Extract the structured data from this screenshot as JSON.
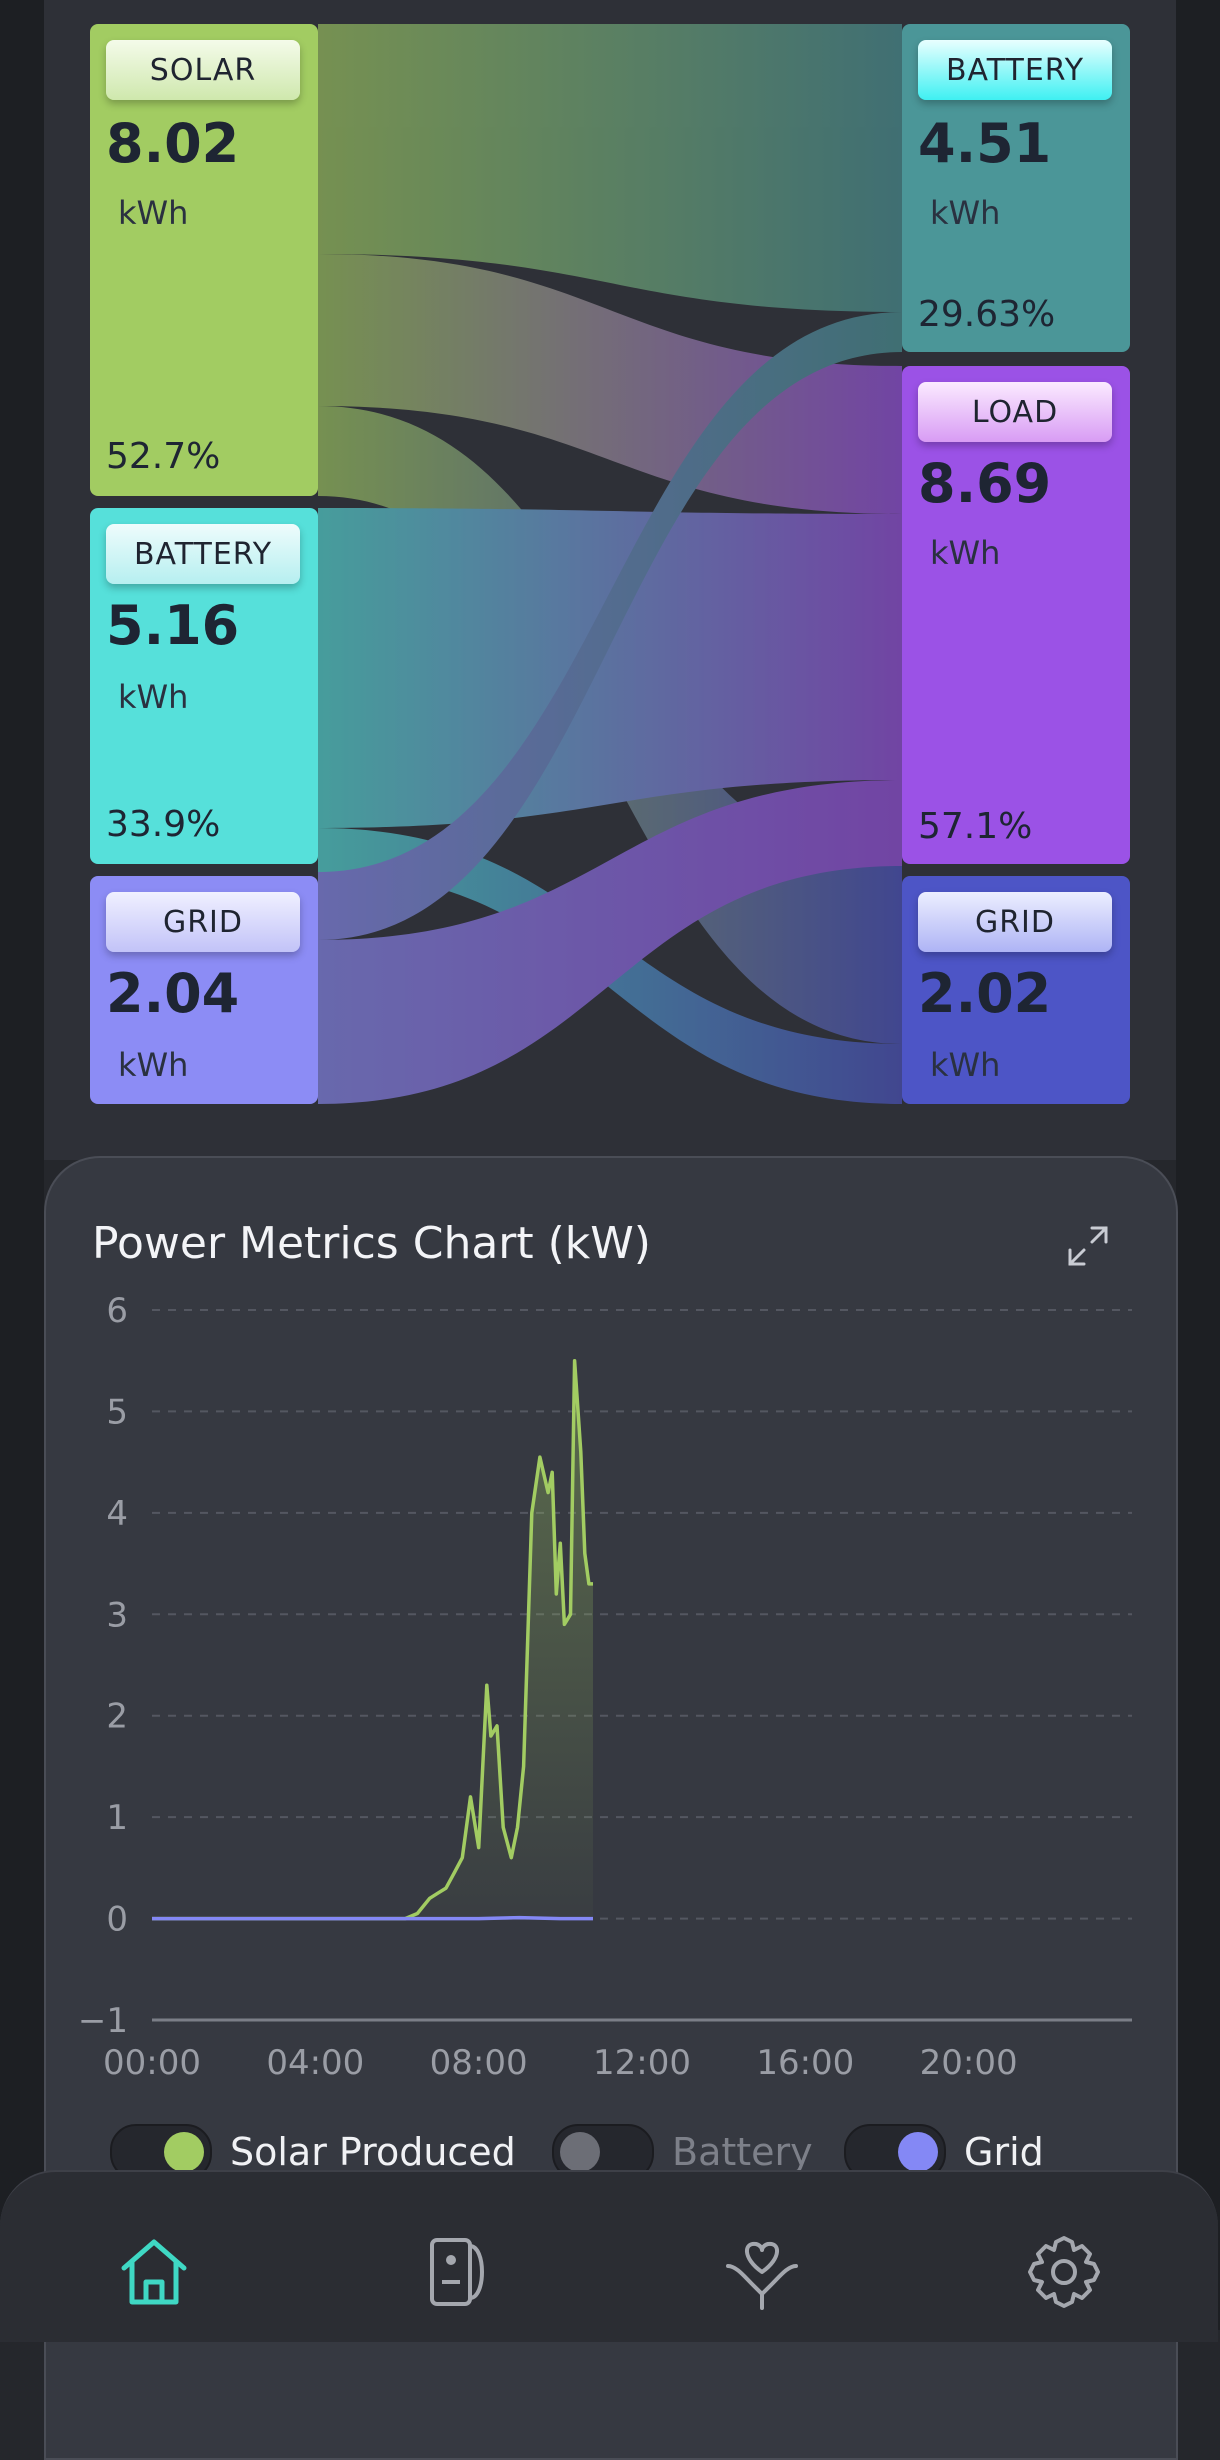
{
  "sankey": {
    "sources": [
      {
        "badge": "SOLAR",
        "value": "8.02",
        "unit": "kWh",
        "percent": "52.7%"
      },
      {
        "badge": "BATTERY",
        "value": "5.16",
        "unit": "kWh",
        "percent": "33.9%"
      },
      {
        "badge": "GRID",
        "value": "2.04",
        "unit": "kWh"
      }
    ],
    "targets": [
      {
        "badge": "BATTERY",
        "value": "4.51",
        "unit": "kWh",
        "percent": "29.63%"
      },
      {
        "badge": "LOAD",
        "value": "8.69",
        "unit": "kWh",
        "percent": "57.1%"
      },
      {
        "badge": "GRID",
        "value": "2.02",
        "unit": "kWh"
      }
    ],
    "colors": {
      "solar": "#a2cc62",
      "battery_source": "#56e0da",
      "grid_source": "#8c8cf5",
      "battery_target": "#4b9698",
      "load": "#9b52e6",
      "grid_target": "#4d55c6"
    }
  },
  "chart": {
    "title": "Power Metrics Chart (kW)",
    "expand_icon": "expand-icon"
  },
  "legend": [
    {
      "label": "Solar Produced",
      "color": "#a2cc62",
      "enabled": true
    },
    {
      "label": "Battery",
      "color": "#6c6e76",
      "enabled": false
    },
    {
      "label": "Grid",
      "color": "#8488f5",
      "enabled": true
    }
  ],
  "nav": {
    "items": [
      {
        "icon": "home-icon",
        "active": true
      },
      {
        "icon": "inverter-icon",
        "active": false
      },
      {
        "icon": "heart-hand-icon",
        "active": false
      },
      {
        "icon": "gear-icon",
        "active": false
      }
    ],
    "active_color": "#3fd8c4"
  },
  "chart_data": {
    "type": "line",
    "title": "Power Metrics Chart (kW)",
    "xlabel": "",
    "ylabel": "",
    "x_ticks": [
      "00:00",
      "04:00",
      "08:00",
      "12:00",
      "16:00",
      "20:00"
    ],
    "y_ticks": [
      6,
      5,
      4,
      3,
      2,
      1,
      0,
      -1
    ],
    "ylim": [
      -1,
      6
    ],
    "xlim_hours": [
      0,
      24
    ],
    "grid": true,
    "legend_position": "bottom",
    "series": [
      {
        "name": "Solar Produced",
        "color": "#a2cc62",
        "x": [
          0,
          6.2,
          6.5,
          6.8,
          7.0,
          7.2,
          7.4,
          7.6,
          7.8,
          8.0,
          8.2,
          8.3,
          8.45,
          8.6,
          8.8,
          8.95,
          9.1,
          9.3,
          9.5,
          9.7,
          9.8,
          9.9,
          10.0,
          10.1,
          10.25,
          10.35,
          10.5,
          10.6,
          10.7,
          10.8
        ],
        "y": [
          0,
          0,
          0.05,
          0.2,
          0.25,
          0.3,
          0.45,
          0.6,
          1.2,
          0.7,
          2.3,
          1.8,
          1.9,
          0.9,
          0.6,
          0.9,
          1.5,
          4.0,
          4.55,
          4.2,
          4.4,
          3.2,
          3.7,
          2.9,
          3.0,
          5.5,
          4.6,
          3.6,
          3.3,
          3.3
        ]
      },
      {
        "name": "Grid",
        "color": "#8488f5",
        "x": [
          0,
          2,
          4,
          6,
          8,
          9,
          10,
          10.8
        ],
        "y": [
          0,
          0,
          0,
          0,
          0,
          0.01,
          0,
          0
        ]
      }
    ]
  }
}
